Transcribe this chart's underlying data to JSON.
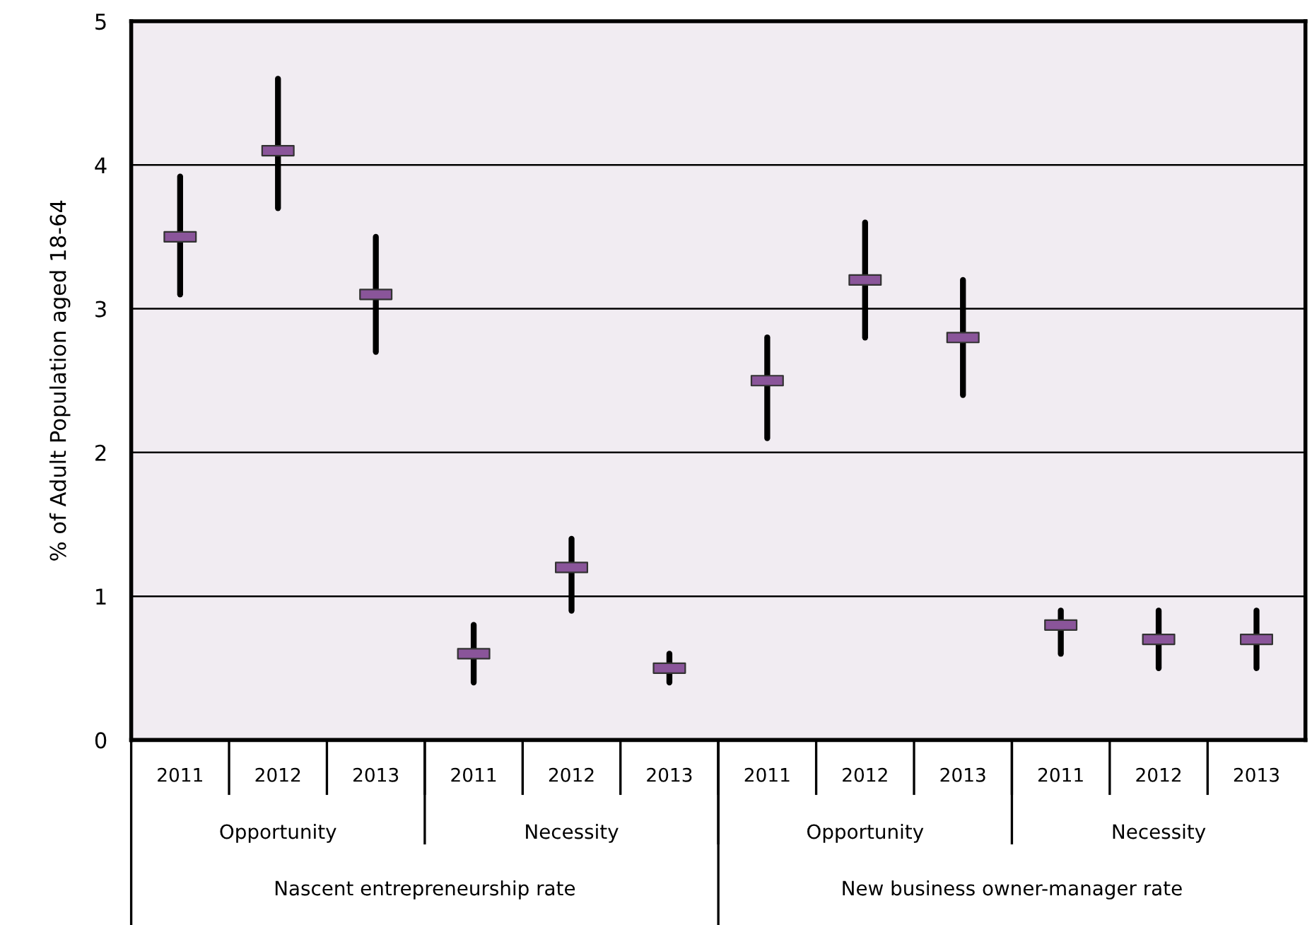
{
  "chart_data": {
    "type": "scatter",
    "ylabel": "% of Adult Population aged 18-64",
    "categories": [
      "2011",
      "2012",
      "2013",
      "2011",
      "2012",
      "2013",
      "2011",
      "2012",
      "2013",
      "2011",
      "2012",
      "2013"
    ],
    "values": [
      3.5,
      4.1,
      3.1,
      0.6,
      1.2,
      0.5,
      2.5,
      3.2,
      2.8,
      0.8,
      0.7,
      0.7
    ],
    "errors": [
      [
        3.1,
        3.92
      ],
      [
        3.7,
        4.6
      ],
      [
        2.7,
        3.5
      ],
      [
        0.4,
        0.8
      ],
      [
        0.9,
        1.4
      ],
      [
        0.4,
        0.6
      ],
      [
        2.1,
        2.8
      ],
      [
        2.8,
        3.6
      ],
      [
        2.4,
        3.2
      ],
      [
        0.6,
        0.9
      ],
      [
        0.5,
        0.9
      ],
      [
        0.5,
        0.9
      ]
    ],
    "color": "#8a559a",
    "marker": "square",
    "ylim": [
      0,
      5
    ],
    "yticks": [
      0,
      1,
      2,
      3,
      4,
      5
    ],
    "grid": "y",
    "annotations": [
      "Opportunity",
      "Necessity",
      "Opportunity",
      "Necessity",
      "Nascent entrepreneurship rate",
      "New business owner-manager rate"
    ]
  }
}
